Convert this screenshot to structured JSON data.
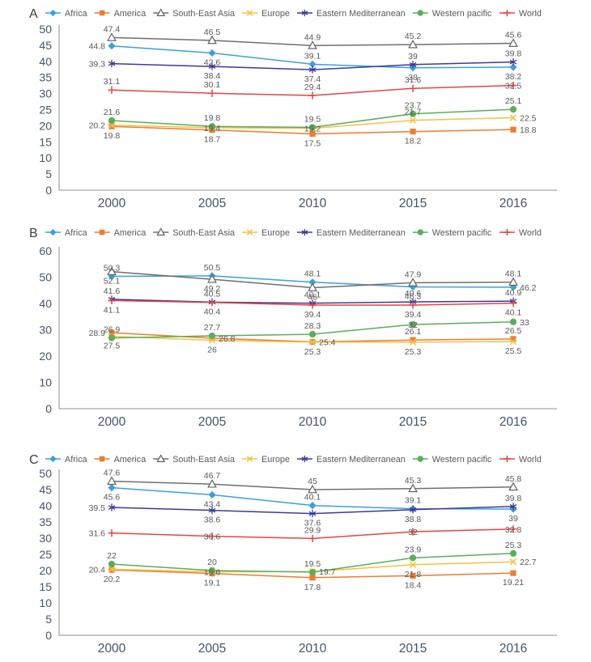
{
  "figure": {
    "panel_letters": [
      "A",
      "B",
      "C"
    ]
  },
  "legend": {
    "position": "top",
    "items": [
      {
        "name": "Africa",
        "color": "#3AA1DB",
        "marker": "diamond"
      },
      {
        "name": "America",
        "color": "#ED7D31",
        "marker": "square"
      },
      {
        "name": "South-East Asia",
        "color": "#6F6F6F",
        "marker": "triangle",
        "marker_fill": "#FFFFFF",
        "marker_stroke": "#595959"
      },
      {
        "name": "Europe",
        "color": "#F5C142",
        "marker": "xmark"
      },
      {
        "name": "Eastern Mediterranean",
        "color": "#3B3B98",
        "marker": "asterisk"
      },
      {
        "name": "Western pacific",
        "color": "#5AAE5A",
        "marker": "circle"
      },
      {
        "name": "World",
        "color": "#E84342",
        "marker": "plus"
      }
    ]
  },
  "axis_style": {
    "tick_color": "#44546A",
    "label_color": "#595959",
    "axis_line_color": "#A6A6A6",
    "grid": false
  },
  "chart_data": [
    {
      "panel": "A",
      "type": "line",
      "categories": [
        "2000",
        "2005",
        "2010",
        "2015",
        "2016"
      ],
      "ylim": [
        0,
        50
      ],
      "ytick_step": 5,
      "yticks": [
        0,
        5,
        10,
        15,
        20,
        25,
        30,
        35,
        40,
        45,
        50
      ],
      "legend_position": "top",
      "grid": false,
      "series": [
        {
          "name": "Africa",
          "values": [
            44.8,
            42.6,
            39.1,
            38,
            38.2
          ],
          "label_pos": [
            "l",
            "b",
            "a",
            "b",
            "b"
          ]
        },
        {
          "name": "America",
          "values": [
            19.8,
            18.7,
            17.5,
            18.2,
            18.8
          ],
          "label_pos": [
            "b",
            "b",
            "b",
            "b",
            "r"
          ]
        },
        {
          "name": "South-East Asia",
          "values": [
            47.4,
            46.5,
            44.9,
            45.2,
            45.6
          ],
          "label_pos": [
            "a",
            "a",
            "a",
            "a",
            "a"
          ]
        },
        {
          "name": "Europe",
          "values": [
            20.2,
            19.4,
            19.2,
            21.7,
            22.5
          ],
          "label_pos": [
            "l",
            "o",
            "o",
            "a",
            "r"
          ]
        },
        {
          "name": "Eastern Mediterranean",
          "values": [
            39.3,
            38.4,
            37.4,
            39,
            39.8
          ],
          "label_pos": [
            "l",
            "b",
            "b",
            "a",
            "a"
          ]
        },
        {
          "name": "Western pacific",
          "values": [
            21.6,
            19.8,
            19.5,
            23.7,
            25.1
          ],
          "label_pos": [
            "a",
            "a",
            "a",
            "a",
            "a"
          ]
        },
        {
          "name": "World",
          "values": [
            31.1,
            30.1,
            29.4,
            31.6,
            32.5
          ],
          "label_pos": [
            "a",
            "a",
            "a",
            "a",
            "o"
          ]
        }
      ]
    },
    {
      "panel": "B",
      "type": "line",
      "categories": [
        "2000",
        "2005",
        "2010",
        "2015",
        "2016"
      ],
      "ylim": [
        0,
        60
      ],
      "ytick_step": 10,
      "yticks": [
        0,
        10,
        20,
        30,
        40,
        50,
        60
      ],
      "legend_position": "top",
      "grid": false,
      "series": [
        {
          "name": "Africa",
          "values": [
            50.3,
            50.5,
            48.1,
            46.3,
            46.2
          ],
          "label_pos": [
            "a",
            "a",
            "a",
            "b",
            "r"
          ]
        },
        {
          "name": "America",
          "values": [
            28.9,
            26.8,
            25.4,
            26.1,
            26.5
          ],
          "label_pos": [
            "l",
            "r",
            "r",
            "a",
            "a"
          ]
        },
        {
          "name": "South-East Asia",
          "values": [
            52.1,
            49.2,
            46,
            47.9,
            48.1
          ],
          "label_pos": [
            "b",
            "b",
            "b",
            "a",
            "a"
          ]
        },
        {
          "name": "Europe",
          "values": [
            27.5,
            26,
            25.3,
            25.3,
            25.5
          ],
          "label_pos": [
            "b",
            "b",
            "b",
            "b",
            "b"
          ]
        },
        {
          "name": "Eastern Mediterranean",
          "values": [
            41.6,
            40.5,
            40.1,
            40.6,
            40.9
          ],
          "label_pos": [
            "a",
            "a",
            "a",
            "a",
            "a"
          ]
        },
        {
          "name": "Western pacific",
          "values": [
            26.9,
            27.7,
            28.3,
            32,
            33
          ],
          "label_pos": [
            "a",
            "a",
            "a",
            "o",
            "r"
          ]
        },
        {
          "name": "World",
          "values": [
            41.1,
            40.4,
            39.4,
            39.4,
            40.1
          ],
          "label_pos": [
            "b",
            "b",
            "b",
            "b",
            "b"
          ]
        }
      ]
    },
    {
      "panel": "C",
      "type": "line",
      "categories": [
        "2000",
        "2005",
        "2010",
        "2015",
        "2016"
      ],
      "ylim": [
        0,
        50
      ],
      "ytick_step": 5,
      "yticks": [
        0,
        5,
        10,
        15,
        20,
        25,
        30,
        35,
        40,
        45,
        50
      ],
      "legend_position": "top",
      "grid": false,
      "series": [
        {
          "name": "Africa",
          "values": [
            45.6,
            43.4,
            40.1,
            39.1,
            39
          ],
          "label_pos": [
            "b",
            "b",
            "a",
            "a",
            "b"
          ]
        },
        {
          "name": "America",
          "values": [
            20.2,
            19.1,
            17.8,
            18.4,
            19.21
          ],
          "label_pos": [
            "b",
            "b",
            "b",
            "b",
            "b"
          ]
        },
        {
          "name": "South-East Asia",
          "values": [
            47.6,
            46.7,
            45,
            45.3,
            45.8
          ],
          "label_pos": [
            "a",
            "a",
            "a",
            "a",
            "a"
          ]
        },
        {
          "name": "Europe",
          "values": [
            20.4,
            19.6,
            19.7,
            21.8,
            22.7
          ],
          "label_pos": [
            "l",
            "o",
            "r",
            "b",
            "r"
          ]
        },
        {
          "name": "Eastern Mediterranean",
          "values": [
            39.5,
            38.6,
            37.6,
            38.8,
            39.8
          ],
          "label_pos": [
            "l",
            "b",
            "b",
            "b",
            "a"
          ]
        },
        {
          "name": "Western pacific",
          "values": [
            22,
            20,
            19.5,
            23.9,
            25.3
          ],
          "label_pos": [
            "a",
            "a",
            "a",
            "a",
            "a"
          ]
        },
        {
          "name": "World",
          "values": [
            31.6,
            30.6,
            29.9,
            32,
            32.8
          ],
          "label_pos": [
            "l",
            "o",
            "a",
            "o",
            "o"
          ]
        }
      ]
    }
  ]
}
